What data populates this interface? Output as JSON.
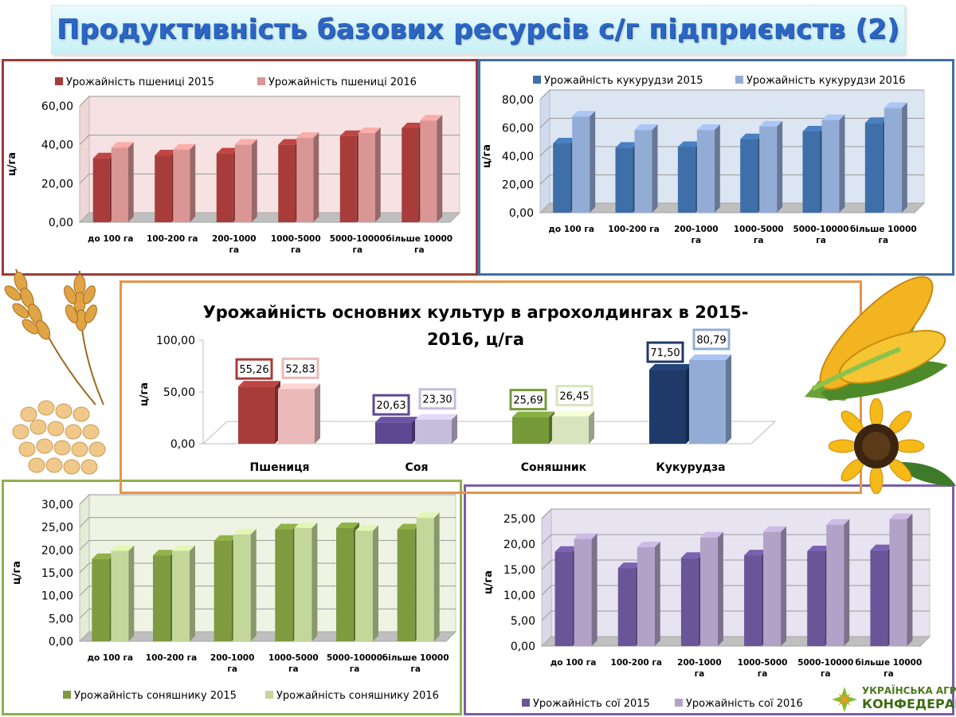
{
  "page": {
    "title": "Продуктивність базових ресурсів с/г підприємств (2)",
    "brand_line1": "УКРАЇНСЬКА АГРАРНА",
    "brand_line2": "КОНФЕДЕРАЦІЯ"
  },
  "chart_data": [
    {
      "id": "wheat",
      "type": "bar",
      "title": "",
      "ylabel": "ц/га",
      "ylim": [
        0,
        60
      ],
      "yticks": [
        "0,00",
        "20,00",
        "40,00",
        "60,00"
      ],
      "categories": [
        "до 100 га",
        "100-200 га",
        "200-1000 га",
        "1000-5000 га",
        "5000-10000 га",
        "більше 10000 га"
      ],
      "legend_position": "top",
      "series": [
        {
          "name": "Урожайність пшениці 2015",
          "color": "#a83c3a",
          "values": [
            33,
            34.5,
            35.5,
            40,
            44.5,
            48.5
          ]
        },
        {
          "name": "Урожайність пшениці 2016",
          "color": "#d99694",
          "values": [
            38.5,
            37.5,
            40,
            43.5,
            46,
            52.5
          ]
        }
      ]
    },
    {
      "id": "corn",
      "type": "bar",
      "title": "",
      "ylabel": "ц/га",
      "ylim": [
        0,
        80
      ],
      "yticks": [
        "0,00",
        "20,00",
        "40,00",
        "60,00",
        "80,00"
      ],
      "categories": [
        "до 100 га",
        "100-200 га",
        "200-1000 га",
        "1000-5000 га",
        "5000-10000 га",
        "більше 10000 га"
      ],
      "legend_position": "top",
      "series": [
        {
          "name": "Урожайність кукурудзи 2015",
          "color": "#3f6fa8",
          "values": [
            49,
            46,
            46.5,
            52,
            57.5,
            63.5
          ]
        },
        {
          "name": "Урожайність кукурудзи 2016",
          "color": "#93acd6",
          "values": [
            68,
            58.5,
            58.5,
            61,
            65.5,
            74
          ]
        }
      ]
    },
    {
      "id": "main",
      "type": "bar",
      "title": "Урожайність основних культур в агрохолдингах в 2015-2016, ц/га",
      "title_line1": "Урожайність основних культур в агрохолдингах в 2015-",
      "title_line2": "2016, ц/га",
      "ylabel": "ц/га",
      "ylim": [
        0,
        100
      ],
      "yticks": [
        "0,00",
        "50,00",
        "100,00"
      ],
      "categories": [
        "Пшениця",
        "Соя",
        "Соняшник",
        "Кукурудза"
      ],
      "series": [
        {
          "year": "2015",
          "values": [
            55.26,
            20.63,
            25.69,
            71.5
          ],
          "labels": [
            "55,26",
            "20,63",
            "25,69",
            "71,50"
          ]
        },
        {
          "year": "2016",
          "values": [
            52.83,
            23.3,
            26.45,
            80.79
          ],
          "labels": [
            "52,83",
            "23,30",
            "26,45",
            "80,79"
          ]
        }
      ],
      "colors_2015": [
        "#a83c3a",
        "#5e4891",
        "#769a3a",
        "#1f3a68"
      ],
      "colors_2016": [
        "#e8b9b8",
        "#c6bcdc",
        "#d7e4bd",
        "#93acd6"
      ]
    },
    {
      "id": "sunflower",
      "type": "bar",
      "title": "",
      "ylabel": "ц/га",
      "ylim": [
        0,
        30
      ],
      "yticks": [
        "0,00",
        "5,00",
        "10,00",
        "15,00",
        "20,00",
        "25,00",
        "30,00"
      ],
      "categories": [
        "до 100 га",
        "100-200 га",
        "200-1000 га",
        "1000-5000 га",
        "5000-10000 га",
        "більше 10000 га"
      ],
      "legend_position": "bottom",
      "series": [
        {
          "name": "Урожайність соняшнику 2015",
          "color": "#7e9b3f",
          "values": [
            18,
            18.8,
            22,
            24.5,
            24.8,
            24.5
          ]
        },
        {
          "name": "Урожайність соняшнику 2016",
          "color": "#c4d79b",
          "values": [
            19.8,
            19.8,
            23.4,
            24.8,
            24.2,
            27
          ]
        }
      ]
    },
    {
      "id": "soy",
      "type": "bar",
      "title": "",
      "ylabel": "ц/га",
      "ylim": [
        0,
        25
      ],
      "yticks": [
        "0,00",
        "5,00",
        "10,00",
        "15,00",
        "20,00",
        "25,00"
      ],
      "categories": [
        "до 100 га",
        "100-200 га",
        "200-1000 га",
        "1000-5000 га",
        "5000-10000 га",
        "більше 10000 га"
      ],
      "legend_position": "bottom",
      "series": [
        {
          "name": "Урожайність сої 2015",
          "color": "#6b5599",
          "values": [
            18.5,
            15.3,
            17.3,
            17.8,
            18.6,
            18.8
          ]
        },
        {
          "name": "Урожайність сої 2016",
          "color": "#b2a2c7",
          "values": [
            21,
            19.4,
            21.3,
            22.4,
            23.8,
            24.9
          ]
        }
      ]
    }
  ]
}
